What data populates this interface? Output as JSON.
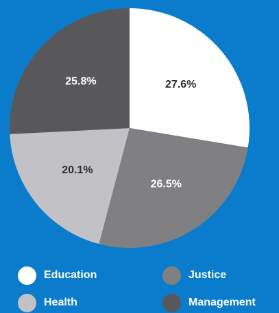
{
  "colors": {
    "background": "#0a7ccb",
    "education": "#ffffff",
    "justice": "#808083",
    "health": "#c2c2c6",
    "management": "#58585b",
    "label_on_light": "#2f2f31",
    "label_on_dark": "#ffffff"
  },
  "chart_data": {
    "type": "pie",
    "categories": [
      "Education",
      "Justice",
      "Health",
      "Management"
    ],
    "values": [
      27.6,
      26.5,
      20.1,
      25.8
    ],
    "data_labels": [
      "27.6%",
      "26.5%",
      "20.1%",
      "25.8%"
    ],
    "legend_position": "bottom",
    "start": "12 o'clock",
    "direction": "clockwise"
  },
  "legend": {
    "items": [
      {
        "label": "Education",
        "icon": "circle-swatch-white"
      },
      {
        "label": "Justice",
        "icon": "circle-swatch-gray"
      },
      {
        "label": "Health",
        "icon": "circle-swatch-light-gray"
      },
      {
        "label": "Management",
        "icon": "circle-swatch-dark-gray"
      }
    ]
  }
}
